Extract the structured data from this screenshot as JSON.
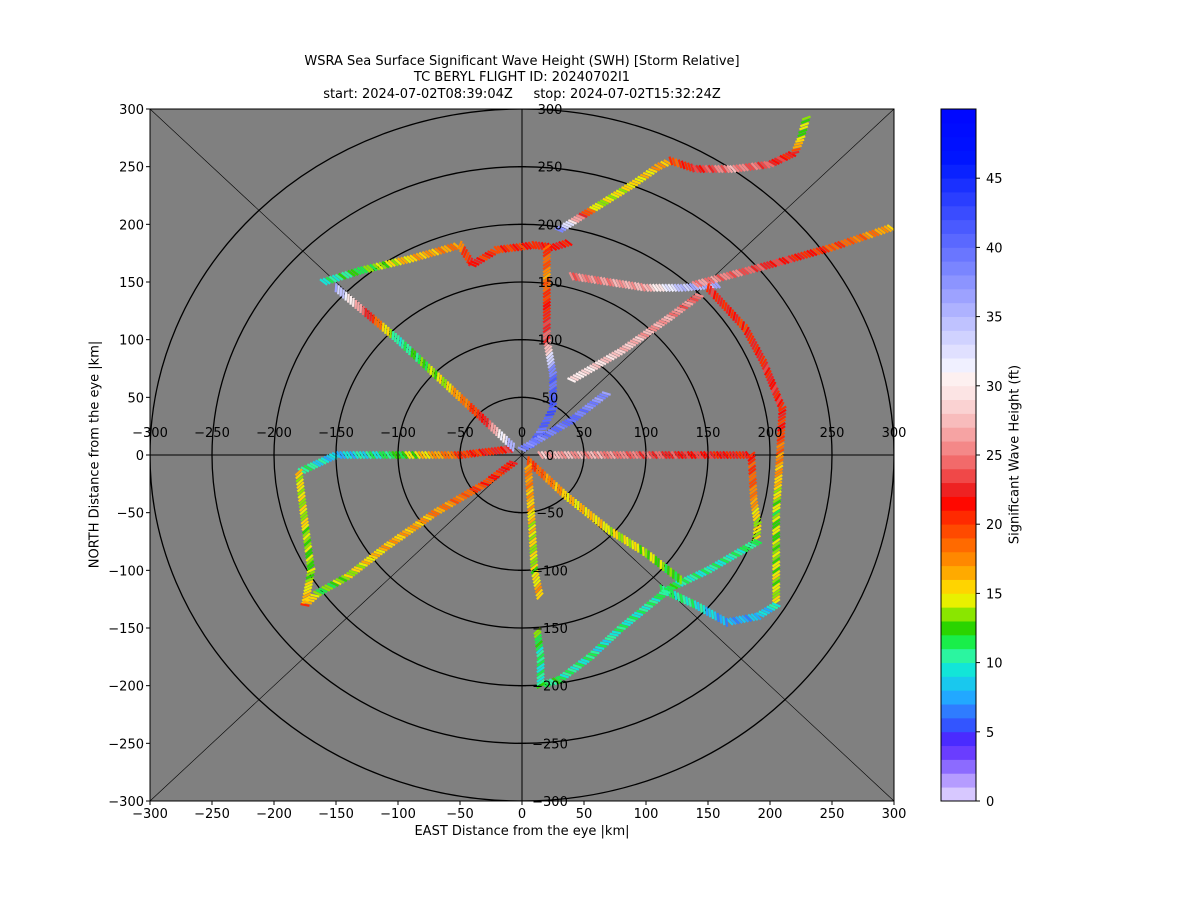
{
  "chart_data": {
    "type": "scatter",
    "title": "WSRA Sea Surface Significant Wave Height (SWH) [Storm Relative]",
    "subtitle": "TC BERYL FLIGHT ID: 20240702I1",
    "start_label": "start: 2024-07-02T08:39:04Z",
    "stop_label": "stop: 2024-07-02T15:32:24Z",
    "xlabel": "EAST Distance from the eye |km|",
    "ylabel": "NORTH Distance from the eye |km|",
    "xlim": [
      -300,
      300
    ],
    "ylim": [
      -300,
      300
    ],
    "x_ticks": [
      -300,
      -250,
      -200,
      -150,
      -100,
      -50,
      0,
      50,
      100,
      150,
      200,
      250,
      300
    ],
    "y_ticks": [
      -300,
      -250,
      -200,
      -150,
      -100,
      -50,
      0,
      50,
      100,
      150,
      200,
      250,
      300
    ],
    "range_rings_km": [
      50,
      100,
      150,
      200,
      250,
      300
    ],
    "background_color": "#808080",
    "colorbar": {
      "label": "Significant Wave Height (ft)",
      "range": [
        0,
        50
      ],
      "ticks": [
        0,
        5,
        10,
        15,
        20,
        25,
        30,
        35,
        40,
        45
      ],
      "colors": [
        "#d7c8ff",
        "#b59cff",
        "#8c6bff",
        "#6a3dff",
        "#4a2bff",
        "#3355ff",
        "#2f7cff",
        "#22a8ff",
        "#19c8ee",
        "#12e5d8",
        "#2bf5a0",
        "#19ee4a",
        "#2bd400",
        "#8ae600",
        "#e8f000",
        "#ffd400",
        "#ffaa00",
        "#ff8800",
        "#ff6a00",
        "#ff4a00",
        "#ff2a00",
        "#ff0800",
        "#ee2222",
        "#f04848",
        "#f26a6a",
        "#f48888",
        "#f6a3a3",
        "#f8bcbc",
        "#fad2d2",
        "#fce4e4",
        "#fdf0f0",
        "#f0f0ff",
        "#e0e0ff",
        "#d0d2ff",
        "#bfc2ff",
        "#aeb2ff",
        "#9da2ff",
        "#8c94ff",
        "#7a85ff",
        "#6a76ff",
        "#5a68ff",
        "#4a5aff",
        "#3a4cff",
        "#2a3eff",
        "#1a30ff",
        "#0a22ff",
        "#0015ff",
        "#0010ff",
        "#000cff",
        "#0008ff"
      ]
    },
    "tracks": [
      {
        "points": [
          [
            -10,
            5
          ],
          [
            -50,
            0
          ],
          [
            -100,
            0
          ],
          [
            -150,
            0
          ],
          [
            -170,
            -10
          ],
          [
            -180,
            -15
          ]
        ],
        "swh": [
          22,
          20,
          12,
          8,
          10,
          12
        ]
      },
      {
        "points": [
          [
            -180,
            -15
          ],
          [
            -175,
            -60
          ],
          [
            -170,
            -100
          ],
          [
            -175,
            -130
          ]
        ],
        "swh": [
          15,
          14,
          13,
          17
        ]
      },
      {
        "points": [
          [
            -175,
            -130
          ],
          [
            -165,
            -120
          ],
          [
            -140,
            -105
          ],
          [
            -110,
            -80
          ],
          [
            -70,
            -50
          ],
          [
            -30,
            -25
          ],
          [
            -5,
            -5
          ]
        ],
        "swh": [
          19,
          12,
          14,
          16,
          17,
          20,
          22
        ]
      },
      {
        "points": [
          [
            -150,
            145
          ],
          [
            -100,
            100
          ],
          [
            -60,
            60
          ],
          [
            -30,
            30
          ],
          [
            -5,
            5
          ]
        ],
        "swh": [
          36,
          10,
          15,
          22,
          38
        ]
      },
      {
        "points": [
          [
            -160,
            150
          ],
          [
            -130,
            160
          ],
          [
            -90,
            170
          ],
          [
            -50,
            182
          ],
          [
            -40,
            165
          ],
          [
            -20,
            178
          ],
          [
            10,
            182
          ],
          [
            25,
            180
          ],
          [
            40,
            185
          ]
        ],
        "swh": [
          10,
          12,
          16,
          18,
          22,
          20,
          21,
          22,
          21
        ]
      },
      {
        "points": [
          [
            20,
            180
          ],
          [
            20,
            155
          ],
          [
            20,
            120
          ],
          [
            20,
            100
          ],
          [
            25,
            70
          ],
          [
            25,
            40
          ],
          [
            15,
            20
          ],
          [
            5,
            5
          ]
        ],
        "swh": [
          20,
          18,
          22,
          24,
          40,
          42,
          40,
          40
        ]
      },
      {
        "points": [
          [
            15,
            0
          ],
          [
            60,
            0
          ],
          [
            120,
            0
          ],
          [
            185,
            0
          ],
          [
            187,
            -40
          ],
          [
            190,
            -60
          ],
          [
            189,
            -75
          ]
        ],
        "swh": [
          27,
          26,
          23,
          21,
          17,
          14,
          15
        ]
      },
      {
        "points": [
          [
            30,
            195
          ],
          [
            60,
            215
          ],
          [
            90,
            235
          ],
          [
            110,
            250
          ],
          [
            120,
            255
          ]
        ],
        "swh": [
          38,
          14,
          15,
          16,
          17
        ]
      },
      {
        "points": [
          [
            120,
            255
          ],
          [
            140,
            248
          ],
          [
            170,
            248
          ],
          [
            200,
            252
          ],
          [
            220,
            262
          ],
          [
            225,
            275
          ],
          [
            230,
            295
          ]
        ],
        "swh": [
          19,
          22,
          26,
          23,
          21,
          13,
          14
        ]
      },
      {
        "points": [
          [
            40,
            155
          ],
          [
            100,
            145
          ],
          [
            130,
            145
          ],
          [
            160,
            148
          ]
        ],
        "swh": [
          25,
          27,
          35,
          36
        ]
      },
      {
        "points": [
          [
            140,
            148
          ],
          [
            200,
            165
          ],
          [
            250,
            180
          ],
          [
            300,
            198
          ]
        ],
        "swh": [
          26,
          23,
          20,
          16
        ]
      },
      {
        "points": [
          [
            150,
            145
          ],
          [
            180,
            110
          ],
          [
            195,
            80
          ],
          [
            210,
            40
          ],
          [
            208,
            0
          ],
          [
            205,
            -50
          ],
          [
            205,
            -100
          ],
          [
            205,
            -130
          ]
        ],
        "swh": [
          22,
          21,
          22,
          22,
          18,
          13,
          14,
          14
        ]
      },
      {
        "points": [
          [
            205,
            -130
          ],
          [
            190,
            -140
          ],
          [
            165,
            -145
          ],
          [
            140,
            -130
          ],
          [
            110,
            -115
          ]
        ],
        "swh": [
          10,
          8,
          7,
          10,
          11
        ]
      },
      {
        "points": [
          [
            190,
            -75
          ],
          [
            150,
            -100
          ],
          [
            120,
            -115
          ],
          [
            80,
            -150
          ],
          [
            55,
            -175
          ],
          [
            30,
            -195
          ],
          [
            15,
            -200
          ]
        ],
        "swh": [
          11,
          10,
          11,
          10,
          10,
          11,
          11
        ]
      },
      {
        "points": [
          [
            15,
            -200
          ],
          [
            15,
            -175
          ],
          [
            12,
            -150
          ]
        ],
        "swh": [
          11,
          10,
          13
        ]
      },
      {
        "points": [
          [
            40,
            65
          ],
          [
            80,
            90
          ],
          [
            120,
            120
          ],
          [
            145,
            140
          ]
        ],
        "swh": [
          30,
          28,
          26,
          24
        ]
      },
      {
        "points": [
          [
            5,
            -5
          ],
          [
            35,
            -35
          ],
          [
            70,
            -65
          ],
          [
            100,
            -85
          ],
          [
            130,
            -110
          ]
        ],
        "swh": [
          20,
          16,
          15,
          14,
          12
        ]
      },
      {
        "points": [
          [
            5,
            -10
          ],
          [
            8,
            -60
          ],
          [
            10,
            -100
          ],
          [
            15,
            -125
          ]
        ],
        "swh": [
          18,
          15,
          14,
          17
        ]
      },
      {
        "points": [
          [
            0,
            5
          ],
          [
            40,
            30
          ],
          [
            70,
            55
          ]
        ],
        "swh": [
          38,
          40,
          37
        ]
      }
    ]
  }
}
